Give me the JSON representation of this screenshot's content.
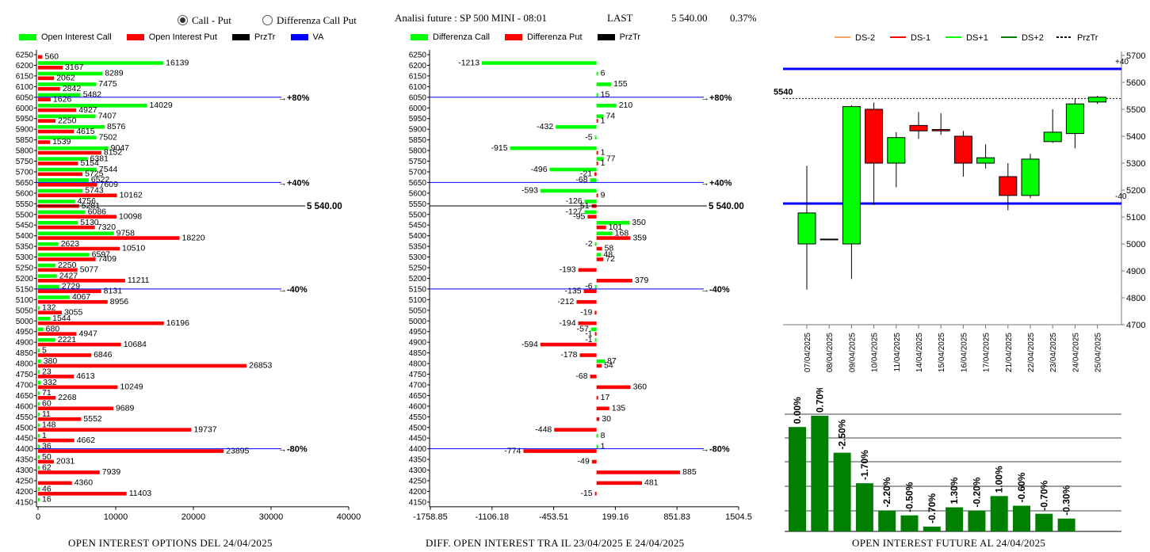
{
  "header": {
    "radio_call_put": "Call - Put",
    "radio_diff": "Differenza Call Put",
    "title": "Analisi future : SP 500 MINI - 08:01",
    "last_label": "LAST",
    "last_value": "5 540.00",
    "change": "0.37%",
    "selected": "call_put"
  },
  "colors": {
    "green": "#00ff00",
    "red": "#ff0000",
    "black": "#000000",
    "blue": "#0000ff",
    "darkgreen": "#008000",
    "orange": "#f4a460"
  },
  "chart_data": [
    {
      "id": "oi",
      "type": "bar",
      "title": "OPEN INTEREST OPTIONS DEL 24/04/2025",
      "orientation": "horizontal",
      "legend": [
        "Open Interest Call",
        "Open Interest Put",
        "PrzTr",
        "VA"
      ],
      "strikes": [
        6250,
        6200,
        6150,
        6100,
        6050,
        6000,
        5950,
        5900,
        5850,
        5800,
        5750,
        5700,
        5650,
        5600,
        5550,
        5500,
        5450,
        5400,
        5350,
        5300,
        5250,
        5200,
        5150,
        5100,
        5050,
        5000,
        4950,
        4900,
        4850,
        4800,
        4750,
        4700,
        4650,
        4600,
        4550,
        4500,
        4450,
        4400,
        4350,
        4300,
        4250,
        4200,
        4150
      ],
      "series": [
        {
          "name": "Open Interest Call",
          "values": [
            null,
            16139,
            8289,
            7475,
            5482,
            14029,
            7407,
            8576,
            7502,
            9047,
            6381,
            7544,
            6522,
            5743,
            4756,
            6086,
            5130,
            9758,
            2623,
            6597,
            2250,
            2427,
            2729,
            4067,
            132,
            1544,
            680,
            2221,
            5,
            380,
            23,
            332,
            71,
            60,
            11,
            148,
            1,
            36,
            50,
            62,
            null,
            46,
            16
          ]
        },
        {
          "name": "Open Interest Put",
          "values": [
            560,
            3167,
            2062,
            2842,
            1626,
            4927,
            2250,
            4615,
            1539,
            8152,
            5154,
            5725,
            7609,
            10162,
            5281,
            10098,
            7320,
            18220,
            10510,
            7409,
            5077,
            11211,
            8131,
            8956,
            3055,
            16196,
            4947,
            10684,
            6846,
            26853,
            4613,
            10249,
            2268,
            9689,
            5552,
            19737,
            4662,
            23895,
            2031,
            7939,
            4360,
            11403,
            null
          ]
        }
      ],
      "xticks": [
        "0",
        "10000",
        "20000",
        "30000",
        "40000"
      ],
      "xlim": [
        0,
        40000
      ],
      "price_line": {
        "value": 5540,
        "label": "5 540.00"
      },
      "va_lines": [
        {
          "strike": 6050,
          "label": "+80%"
        },
        {
          "strike": 5650,
          "label": "+40%"
        },
        {
          "strike": 5150,
          "label": "-40%"
        },
        {
          "strike": 4400,
          "label": "-80%"
        }
      ]
    },
    {
      "id": "diff",
      "type": "bar",
      "title": "DIFF. OPEN INTEREST TRA IL 23/04/2025 E 24/04/2025",
      "orientation": "horizontal",
      "legend": [
        "Differenza Call",
        "Differenza Put",
        "PrzTr"
      ],
      "strikes": [
        6250,
        6200,
        6150,
        6100,
        6050,
        6000,
        5950,
        5900,
        5850,
        5800,
        5750,
        5700,
        5650,
        5600,
        5550,
        5500,
        5450,
        5400,
        5350,
        5300,
        5250,
        5200,
        5150,
        5100,
        5050,
        5000,
        4950,
        4900,
        4850,
        4800,
        4750,
        4700,
        4650,
        4600,
        4550,
        4500,
        4450,
        4400,
        4350,
        4300,
        4250,
        4200,
        4150
      ],
      "series": [
        {
          "name": "Differenza Call",
          "values": [
            null,
            -1213,
            6,
            155,
            15,
            210,
            74,
            -432,
            -5,
            -915,
            77,
            -496,
            -68,
            -593,
            -126,
            -127,
            350,
            168,
            -2,
            48,
            null,
            null,
            -6,
            null,
            null,
            null,
            -57,
            -1,
            null,
            87,
            null,
            null,
            null,
            null,
            null,
            null,
            8,
            1,
            null,
            null,
            null,
            null,
            null
          ]
        },
        {
          "name": "Differenza Put",
          "values": [
            null,
            null,
            null,
            null,
            null,
            null,
            1,
            null,
            null,
            1,
            1,
            -21,
            null,
            9,
            -51,
            -95,
            101,
            359,
            58,
            72,
            -193,
            379,
            -135,
            -212,
            -19,
            -194,
            -1,
            -594,
            -178,
            54,
            -68,
            360,
            17,
            135,
            30,
            -448,
            null,
            -774,
            -49,
            885,
            481,
            -15,
            null
          ]
        }
      ],
      "xticks": [
        "-1758.85",
        "-1106.18",
        "-453.51",
        "199.16",
        "851.83",
        "1504.5"
      ],
      "xlim": [
        -1758.85,
        1504.5
      ],
      "price_line": {
        "value": 5540,
        "label": "5 540.00"
      },
      "va_lines": [
        {
          "strike": 6050,
          "label": "+80%"
        },
        {
          "strike": 5650,
          "label": "+40%"
        },
        {
          "strike": 5150,
          "label": "-40%"
        },
        {
          "strike": 4400,
          "label": "-80%"
        }
      ]
    },
    {
      "id": "candles",
      "type": "candlestick",
      "legend": [
        "DS-2",
        "DS-1",
        "DS+1",
        "DS+2",
        "PrzTr"
      ],
      "dates": [
        "07/04/2025",
        "08/04/2025",
        "09/04/2025",
        "10/04/2025",
        "11/04/2025",
        "14/04/2025",
        "15/04/2025",
        "16/04/2025",
        "17/04/2025",
        "21/04/2025",
        "22/04/2025",
        "23/04/2025",
        "24/04/2025",
        "25/04/2025"
      ],
      "ohlc": [
        [
          5000,
          5290,
          4830,
          5115
        ],
        [
          5018,
          5018,
          5018,
          5018
        ],
        [
          5000,
          5515,
          4870,
          5510
        ],
        [
          5500,
          5525,
          5145,
          5300
        ],
        [
          5300,
          5415,
          5210,
          5395
        ],
        [
          5440,
          5490,
          5390,
          5420
        ],
        [
          5425,
          5485,
          5405,
          5420
        ],
        [
          5400,
          5420,
          5250,
          5300
        ],
        [
          5300,
          5370,
          5280,
          5320
        ],
        [
          5250,
          5300,
          5125,
          5180
        ],
        [
          5180,
          5335,
          5170,
          5315
        ],
        [
          5380,
          5500,
          5375,
          5415
        ],
        [
          5410,
          5540,
          5355,
          5520
        ],
        [
          5527,
          5550,
          5520,
          5545
        ]
      ],
      "yticks": [
        "5700",
        "5600",
        "5500",
        "5400",
        "5300",
        "5200",
        "5100",
        "5000",
        "4900",
        "4800",
        "4700"
      ],
      "ylim": [
        4700,
        5700
      ],
      "price_line": {
        "value": 5540,
        "label": "5540"
      },
      "blue_lines": [
        {
          "value": 5650,
          "label": "+40"
        },
        {
          "value": 5150,
          "label": "-40"
        }
      ]
    },
    {
      "id": "future_oi",
      "type": "bar",
      "title": "OPEN INTEREST FUTURE AL 24/04/2025",
      "values": [
        6.5,
        7.2,
        4.9,
        3.0,
        1.3,
        1.0,
        0.3,
        1.5,
        1.3,
        2.2,
        1.6,
        1.1,
        0.8
      ],
      "labels": [
        "0.00%",
        "0.70%",
        "-2.50%",
        "-1.70%",
        "-2.20%",
        "-0.50%",
        "-0.70%",
        "1.30%",
        "-0.20%",
        "1.00%",
        "-0.60%",
        "-0.70%",
        "-0.30%"
      ]
    }
  ]
}
